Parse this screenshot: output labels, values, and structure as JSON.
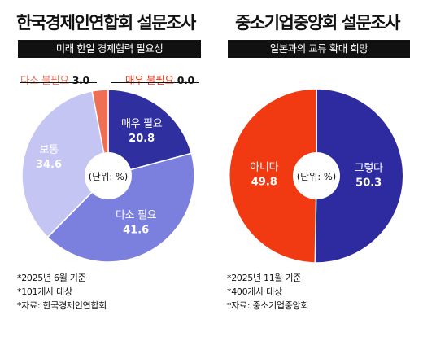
{
  "chart_data": [
    {
      "type": "pie",
      "title": "한국경제인연합회 설문조사",
      "subtitle": "미래 한일 경제협력 필요성",
      "center_label": "(단위: %)",
      "slices": [
        {
          "label": "매우 필요",
          "value": 20.8,
          "color": "#2f2fa0"
        },
        {
          "label": "다소 필요",
          "value": 41.6,
          "color": "#7b7fdd"
        },
        {
          "label": "보통",
          "value": 34.6,
          "color": "#c4c5f2"
        },
        {
          "label": "다소 불필요",
          "value": 3.0,
          "color": "#ee6f54"
        },
        {
          "label": "매우 불필요",
          "value": 0.0,
          "color": "#e03a1c"
        }
      ],
      "slice_value_text": [
        "20.8",
        "41.6",
        "34.6",
        "3.0",
        "0.0"
      ],
      "notes": [
        "*2025년 6월 기준",
        "*101개사 대상",
        "*자료: 한국경제인연합회"
      ]
    },
    {
      "type": "pie",
      "title": "중소기업중앙회 설문조사",
      "subtitle": "일본과의 교류 확대 희망",
      "center_label": "(단위: %)",
      "slices": [
        {
          "label": "그렇다",
          "value": 50.3,
          "color": "#2d2b9f"
        },
        {
          "label": "아니다",
          "value": 49.8,
          "color": "#f23a12"
        }
      ],
      "slice_value_text": [
        "50.3",
        "49.8"
      ],
      "notes": [
        "*2025년 11월 기준",
        "*400개사 대상",
        "*자료: 중소기업중앙회"
      ]
    }
  ]
}
